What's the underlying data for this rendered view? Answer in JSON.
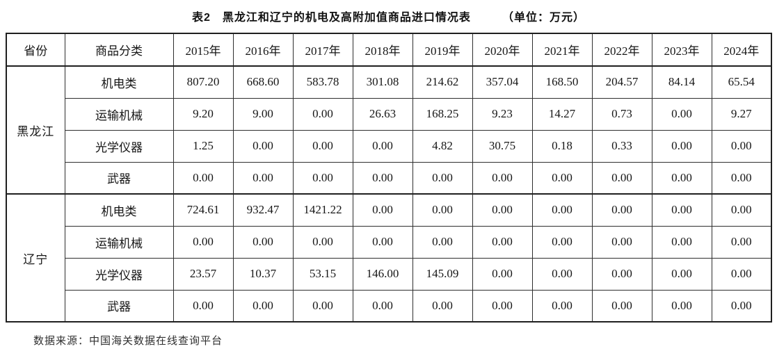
{
  "title": {
    "main": "表2　黑龙江和辽宁的机电及高附加值商品进口情况表",
    "unit": "（单位：万元）"
  },
  "table": {
    "headers": {
      "province": "省份",
      "category": "商品分类"
    },
    "year_columns": [
      "2015年",
      "2016年",
      "2017年",
      "2018年",
      "2019年",
      "2020年",
      "2021年",
      "2022年",
      "2023年",
      "2024年"
    ],
    "sections": [
      {
        "province": "黑龙江",
        "rows": [
          {
            "category": "机电类",
            "values": [
              "807.20",
              "668.60",
              "583.78",
              "301.08",
              "214.62",
              "357.04",
              "168.50",
              "204.57",
              "84.14",
              "65.54"
            ]
          },
          {
            "category": "运输机械",
            "values": [
              "9.20",
              "9.00",
              "0.00",
              "26.63",
              "168.25",
              "9.23",
              "14.27",
              "0.73",
              "0.00",
              "9.27"
            ]
          },
          {
            "category": "光学仪器",
            "values": [
              "1.25",
              "0.00",
              "0.00",
              "0.00",
              "4.82",
              "30.75",
              "0.18",
              "0.33",
              "0.00",
              "0.00"
            ]
          },
          {
            "category": "武器",
            "values": [
              "0.00",
              "0.00",
              "0.00",
              "0.00",
              "0.00",
              "0.00",
              "0.00",
              "0.00",
              "0.00",
              "0.00"
            ]
          }
        ]
      },
      {
        "province": "辽宁",
        "rows": [
          {
            "category": "机电类",
            "values": [
              "724.61",
              "932.47",
              "1421.22",
              "0.00",
              "0.00",
              "0.00",
              "0.00",
              "0.00",
              "0.00",
              "0.00"
            ]
          },
          {
            "category": "运输机械",
            "values": [
              "0.00",
              "0.00",
              "0.00",
              "0.00",
              "0.00",
              "0.00",
              "0.00",
              "0.00",
              "0.00",
              "0.00"
            ]
          },
          {
            "category": "光学仪器",
            "values": [
              "23.57",
              "10.37",
              "53.15",
              "146.00",
              "145.09",
              "0.00",
              "0.00",
              "0.00",
              "0.00",
              "0.00"
            ]
          },
          {
            "category": "武器",
            "values": [
              "0.00",
              "0.00",
              "0.00",
              "0.00",
              "0.00",
              "0.00",
              "0.00",
              "0.00",
              "0.00",
              "0.00"
            ]
          }
        ]
      }
    ]
  },
  "footer": {
    "source": "数据来源：中国海关数据在线查询平台"
  },
  "colors": {
    "text": "#161616",
    "border": "#2e2e2e",
    "background": "#ffffff"
  }
}
